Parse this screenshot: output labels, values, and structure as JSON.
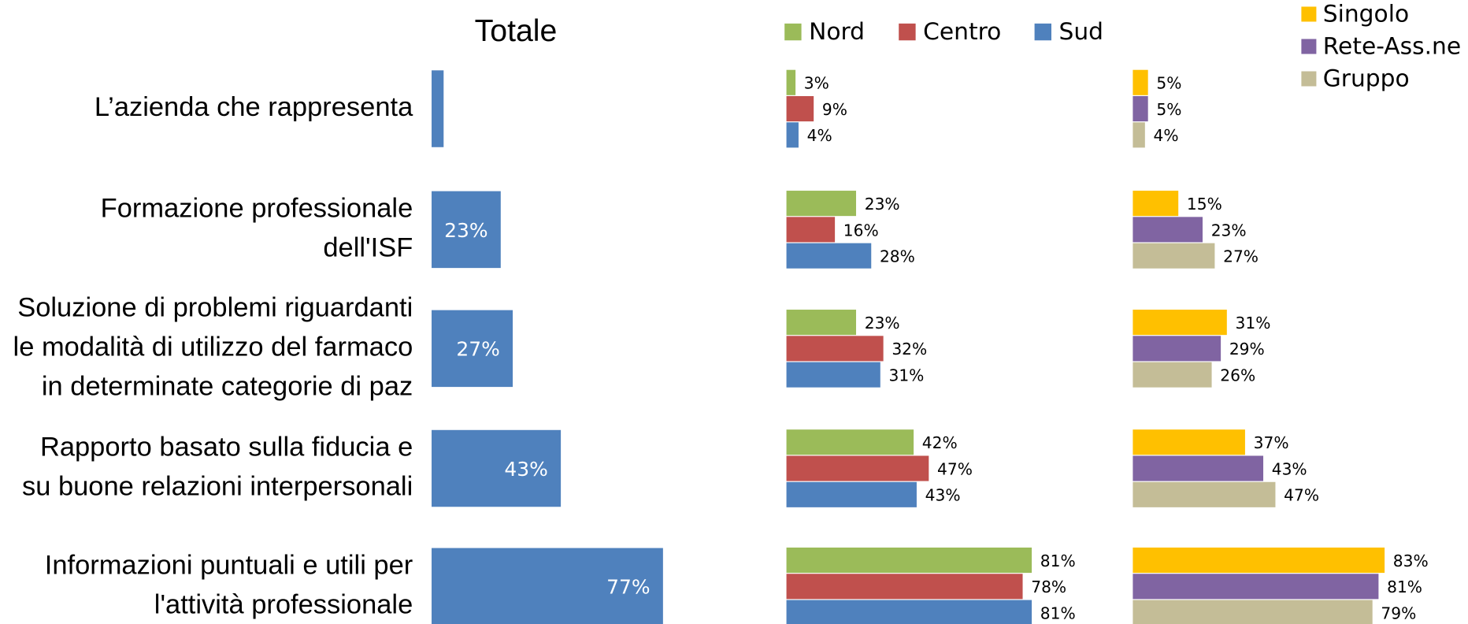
{
  "chart_data": [
    {
      "type": "bar",
      "title": "Totale",
      "color": "#4f81bd",
      "categories": [
        [
          "L’azienda che rappresenta"
        ],
        [
          "Formazione professionale",
          "dell'ISF"
        ],
        [
          "Soluzione di problemi riguardanti",
          "le modalità di utilizzo del farmaco",
          "in determinate categorie di paz"
        ],
        [
          "Rapporto basato sulla fiducia e",
          "su buone relazioni interpersonali"
        ],
        [
          "Informazioni puntuali e utili per",
          "l'attività professionale"
        ]
      ],
      "values": [
        4,
        23,
        27,
        43,
        77
      ],
      "value_labels": [
        null,
        "23%",
        "27%",
        "43%",
        "77%"
      ]
    },
    {
      "type": "bar",
      "legend": "top",
      "series": [
        {
          "name": "Nord",
          "color": "#9bbb59",
          "values": [
            3,
            23,
            23,
            42,
            81
          ],
          "value_labels": [
            "3%",
            "23%",
            "23%",
            "42%",
            "81%"
          ]
        },
        {
          "name": "Centro",
          "color": "#c0504d",
          "values": [
            9,
            16,
            32,
            47,
            78
          ],
          "value_labels": [
            "9%",
            "16%",
            "32%",
            "47%",
            "78%"
          ]
        },
        {
          "name": "Sud",
          "color": "#4f81bd",
          "values": [
            4,
            28,
            31,
            43,
            81
          ],
          "value_labels": [
            "4%",
            "28%",
            "31%",
            "43%",
            "81%"
          ]
        }
      ]
    },
    {
      "type": "bar",
      "legend": "top right",
      "series": [
        {
          "name": "Singolo",
          "color": "#ffc000",
          "values": [
            5,
            15,
            31,
            37,
            83
          ],
          "value_labels": [
            "5%",
            "15%",
            "31%",
            "37%",
            "83%"
          ]
        },
        {
          "name": "Rete-Ass.ne",
          "color": "#8064a2",
          "values": [
            5,
            23,
            29,
            43,
            81
          ],
          "value_labels": [
            "5%",
            "23%",
            "29%",
            "43%",
            "81%"
          ]
        },
        {
          "name": "Gruppo",
          "color": "#c4bd97",
          "values": [
            4,
            27,
            26,
            47,
            79
          ],
          "value_labels": [
            "4%",
            "27%",
            "26%",
            "47%",
            "79%"
          ]
        }
      ]
    }
  ]
}
